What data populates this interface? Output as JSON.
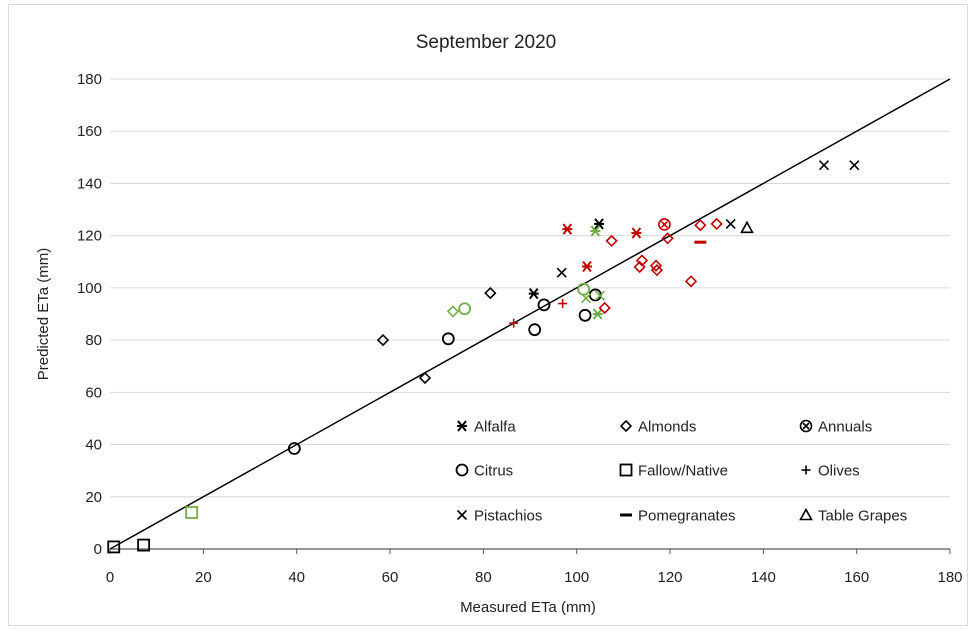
{
  "chart_data": {
    "type": "scatter",
    "title": "September 2020",
    "xlabel": "Measured ETa (mm)",
    "ylabel": "Predicted ETa (mm)",
    "xlim": [
      0,
      180
    ],
    "ylim": [
      0,
      180
    ],
    "x_ticks": [
      "0",
      "20",
      "40",
      "60",
      "80",
      "100",
      "120",
      "140",
      "160",
      "180"
    ],
    "y_ticks": [
      "0",
      "20",
      "40",
      "60",
      "80",
      "100",
      "120",
      "140",
      "160",
      "180"
    ],
    "grid": "horizontal",
    "reference_line": [
      [
        0,
        0
      ],
      [
        180,
        180
      ]
    ],
    "legend_placement": "bottom-right",
    "colors": {
      "black": "#000000",
      "red": "#c00000",
      "green": "#70ad47"
    },
    "series": [
      {
        "name": "Alfalfa",
        "marker": "asterisk",
        "points": [
          {
            "x": 104.8,
            "y": 124.5,
            "color": "black"
          },
          {
            "x": 90.8,
            "y": 97.8,
            "color": "black"
          },
          {
            "x": 98.0,
            "y": 122.5,
            "color": "red"
          },
          {
            "x": 102.2,
            "y": 108.2,
            "color": "red"
          },
          {
            "x": 112.8,
            "y": 121.0,
            "color": "red"
          },
          {
            "x": 104.5,
            "y": 90.0,
            "color": "green"
          },
          {
            "x": 104.0,
            "y": 121.8,
            "color": "green"
          }
        ]
      },
      {
        "name": "Almonds",
        "marker": "diamond",
        "points": [
          {
            "x": 58.5,
            "y": 80.0,
            "color": "black"
          },
          {
            "x": 67.5,
            "y": 65.5,
            "color": "black"
          },
          {
            "x": 81.5,
            "y": 98.0,
            "color": "black"
          },
          {
            "x": 106.0,
            "y": 92.3,
            "color": "red"
          },
          {
            "x": 107.5,
            "y": 118.0,
            "color": "red"
          },
          {
            "x": 113.5,
            "y": 108.0,
            "color": "red"
          },
          {
            "x": 114.0,
            "y": 110.5,
            "color": "red"
          },
          {
            "x": 117.0,
            "y": 108.5,
            "color": "red"
          },
          {
            "x": 117.2,
            "y": 106.8,
            "color": "red"
          },
          {
            "x": 119.5,
            "y": 119.0,
            "color": "red"
          },
          {
            "x": 124.5,
            "y": 102.5,
            "color": "red"
          },
          {
            "x": 126.5,
            "y": 124.0,
            "color": "red"
          },
          {
            "x": 130.0,
            "y": 124.5,
            "color": "red"
          },
          {
            "x": 73.5,
            "y": 91.0,
            "color": "green"
          }
        ]
      },
      {
        "name": "Annuals",
        "marker": "circle-x",
        "points": [
          {
            "x": 118.8,
            "y": 124.3,
            "color": "red"
          }
        ]
      },
      {
        "name": "Citrus",
        "marker": "circle",
        "points": [
          {
            "x": 39.5,
            "y": 38.5,
            "color": "black"
          },
          {
            "x": 72.5,
            "y": 80.5,
            "color": "black"
          },
          {
            "x": 91.0,
            "y": 84.0,
            "color": "black"
          },
          {
            "x": 93.0,
            "y": 93.5,
            "color": "black"
          },
          {
            "x": 101.8,
            "y": 89.5,
            "color": "black"
          },
          {
            "x": 104.0,
            "y": 97.3,
            "color": "black"
          },
          {
            "x": 76.0,
            "y": 92.0,
            "color": "green"
          },
          {
            "x": 101.5,
            "y": 99.5,
            "color": "green"
          }
        ]
      },
      {
        "name": "Fallow/Native",
        "marker": "square",
        "points": [
          {
            "x": 0.8,
            "y": 0.8,
            "color": "black"
          },
          {
            "x": 7.2,
            "y": 1.5,
            "color": "black"
          },
          {
            "x": 17.5,
            "y": 14.0,
            "color": "green"
          }
        ]
      },
      {
        "name": "Olives",
        "marker": "plus",
        "points": [
          {
            "x": 86.5,
            "y": 86.5,
            "color": "red"
          },
          {
            "x": 97.0,
            "y": 94.0,
            "color": "red"
          }
        ]
      },
      {
        "name": "Pistachios",
        "marker": "x",
        "points": [
          {
            "x": 96.8,
            "y": 105.8,
            "color": "black"
          },
          {
            "x": 133.0,
            "y": 124.5,
            "color": "black"
          },
          {
            "x": 153.0,
            "y": 147.0,
            "color": "black"
          },
          {
            "x": 159.5,
            "y": 147.0,
            "color": "black"
          },
          {
            "x": 102.0,
            "y": 96.0,
            "color": "green"
          },
          {
            "x": 105.0,
            "y": 97.0,
            "color": "green"
          }
        ]
      },
      {
        "name": "Pomegranates",
        "marker": "dash",
        "points": [
          {
            "x": 126.5,
            "y": 117.5,
            "color": "red"
          }
        ]
      },
      {
        "name": "Table Grapes",
        "marker": "triangle",
        "points": [
          {
            "x": 136.5,
            "y": 123.0,
            "color": "black"
          }
        ]
      }
    ]
  }
}
